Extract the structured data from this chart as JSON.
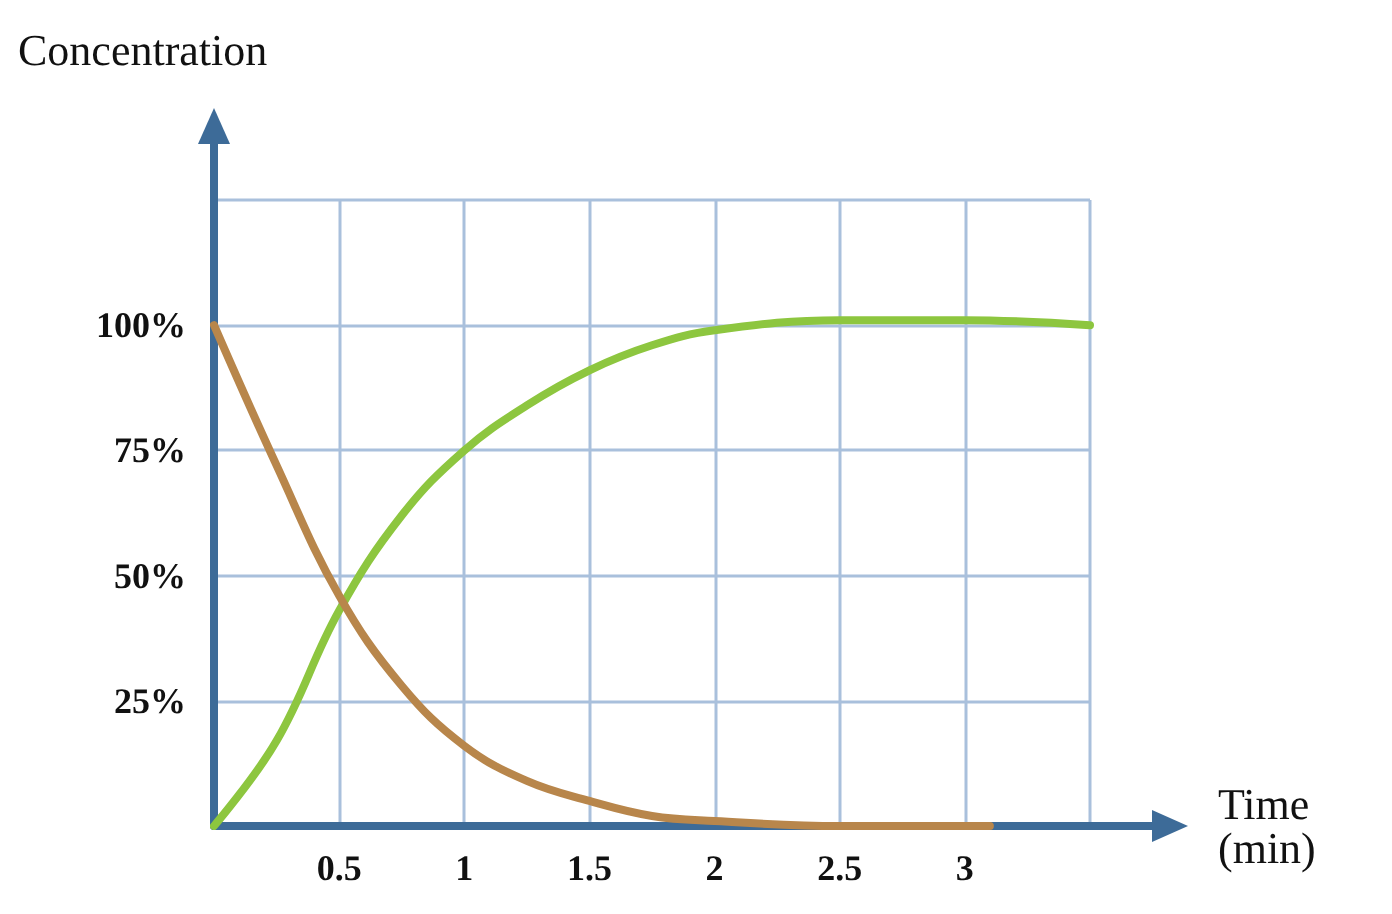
{
  "chart_data": {
    "type": "line",
    "xlabel": "Time (min)",
    "ylabel": "Concentration",
    "xlim": [
      0,
      3.5
    ],
    "ylim": [
      0,
      125
    ],
    "xticks": [
      {
        "value": 0,
        "label": null
      },
      0.5,
      1,
      1.5,
      2,
      2.5,
      3,
      {
        "value": 3.5,
        "label": null
      }
    ],
    "yticks": [
      {
        "value": 0,
        "label": null
      },
      {
        "value": 25,
        "label": "25%"
      },
      {
        "value": 50,
        "label": "50%"
      },
      {
        "value": 75,
        "label": "75%"
      },
      {
        "value": 100,
        "label": "100%"
      },
      {
        "value": 125,
        "label": null
      }
    ],
    "grid": true,
    "marker": "none",
    "line_style": "solid",
    "series": [
      {
        "color": "#8dc63f",
        "x": [
          0,
          0.25,
          0.5,
          0.75,
          1,
          1.25,
          1.5,
          1.75,
          2,
          2.5,
          3,
          3.5
        ],
        "values": [
          0,
          17,
          43,
          62,
          75,
          84,
          91,
          96,
          99,
          101,
          101,
          100
        ]
      },
      {
        "color": "#b8864b",
        "x": [
          0,
          0.25,
          0.5,
          0.75,
          1,
          1.25,
          1.5,
          1.75,
          2,
          2.5,
          3.1
        ],
        "values": [
          100,
          72,
          46,
          28,
          16,
          9,
          5,
          2,
          1,
          0,
          0
        ]
      }
    ]
  }
}
